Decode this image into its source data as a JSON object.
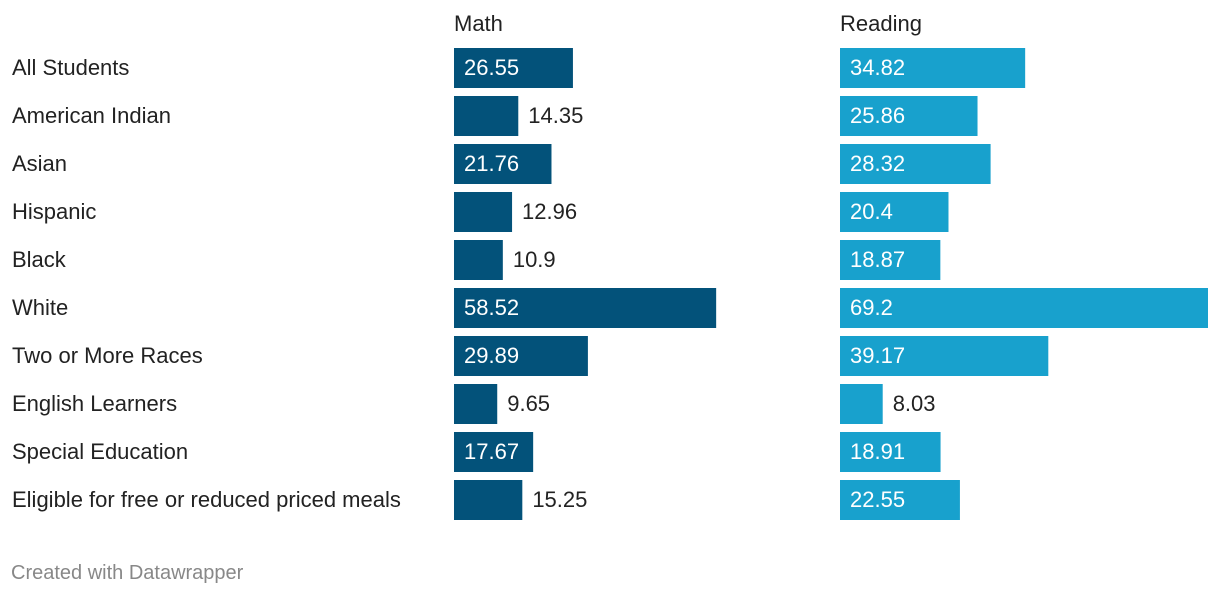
{
  "chart_data": {
    "type": "bar",
    "orientation": "horizontal",
    "layout": "split-bars",
    "categories": [
      "All Students",
      "American Indian",
      "Asian",
      "Hispanic",
      "Black",
      "White",
      "Two or More Races",
      "English Learners",
      "Special Education",
      "Eligible for free or reduced priced meals"
    ],
    "series": [
      {
        "name": "Math",
        "color": "#03527a",
        "values": [
          26.55,
          14.35,
          21.76,
          12.96,
          10.9,
          58.52,
          29.89,
          9.65,
          17.67,
          15.25
        ]
      },
      {
        "name": "Reading",
        "color": "#18a1cd",
        "values": [
          34.82,
          25.86,
          28.32,
          20.4,
          18.87,
          69.2,
          39.17,
          8.03,
          18.91,
          22.55
        ]
      }
    ],
    "xlim": [
      0,
      69.2
    ],
    "grid": false,
    "legend": "column-headers",
    "value_labels": true
  },
  "footer": {
    "credit": "Created with Datawrapper"
  }
}
